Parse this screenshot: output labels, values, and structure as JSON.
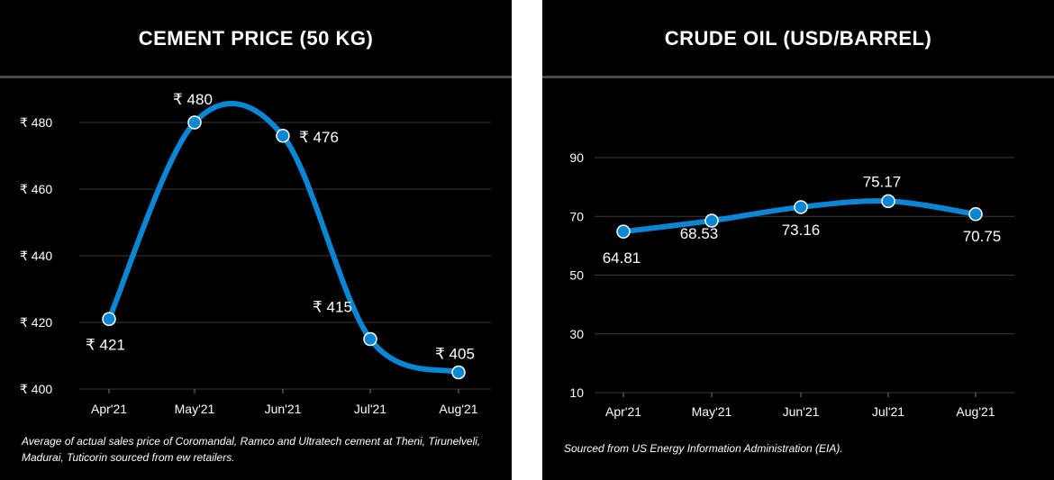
{
  "colors": {
    "background": "#000000",
    "line": "#0a86d4",
    "grid": "#3a3a3a",
    "text": "#ffffff"
  },
  "chart_data": [
    {
      "type": "line",
      "title": "CEMENT PRICE (50 KG)",
      "categories": [
        "Apr'21",
        "May'21",
        "Jun'21",
        "Jul'21",
        "Aug'21"
      ],
      "series": [
        {
          "values": [
            421,
            480,
            476,
            415,
            405
          ]
        }
      ],
      "data_labels": [
        "₹ 421",
        "₹ 480",
        "₹ 476",
        "₹ 415",
        "₹ 405"
      ],
      "y_ticks": [
        400,
        420,
        440,
        460,
        480
      ],
      "y_tick_labels": [
        "₹ 400",
        "₹ 420",
        "₹ 440",
        "₹ 460",
        "₹ 480"
      ],
      "ylim": [
        400,
        480
      ],
      "grid": true,
      "footnote": "Average of actual sales price of Coromandal, Ramco and Ultratech cement at Theni, Tirunelveli, Madurai, Tuticorin sourced from ew retailers."
    },
    {
      "type": "line",
      "title": "CRUDE OIL (USD/BARREL)",
      "categories": [
        "Apr'21",
        "May'21",
        "Jun'21",
        "Jul'21",
        "Aug'21"
      ],
      "series": [
        {
          "values": [
            64.81,
            68.53,
            73.16,
            75.17,
            70.75
          ]
        }
      ],
      "data_labels": [
        "64.81",
        "68.53",
        "73.16",
        "75.17",
        "70.75"
      ],
      "y_ticks": [
        10,
        30,
        50,
        70,
        90
      ],
      "y_tick_labels": [
        "10",
        "30",
        "50",
        "70",
        "90"
      ],
      "ylim": [
        10,
        90
      ],
      "grid": true,
      "footnote": "Sourced from US Energy Information Administration (EIA)."
    }
  ]
}
